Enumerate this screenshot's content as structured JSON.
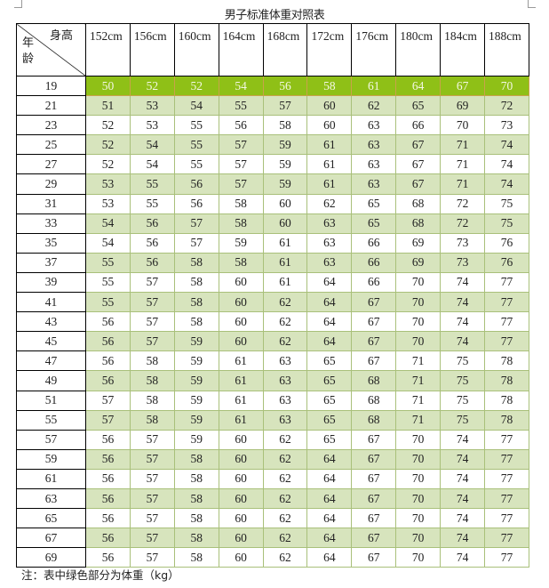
{
  "title": "男子标准体重对照表",
  "corner": {
    "height_label": "身高",
    "age_label": "年龄"
  },
  "heights": [
    "152cm",
    "156cm",
    "160cm",
    "164cm",
    "168cm",
    "172cm",
    "176cm",
    "180cm",
    "184cm",
    "188cm"
  ],
  "colors": {
    "highlight_row": "#8fc017",
    "alt_row": "#d7e4bd",
    "grid": "#a9c07a"
  },
  "rows": [
    {
      "age": "19",
      "w": [
        "50",
        "52",
        "52",
        "54",
        "56",
        "58",
        "61",
        "64",
        "67",
        "70"
      ]
    },
    {
      "age": "21",
      "w": [
        "51",
        "53",
        "54",
        "55",
        "57",
        "60",
        "62",
        "65",
        "69",
        "72"
      ]
    },
    {
      "age": "23",
      "w": [
        "52",
        "53",
        "55",
        "56",
        "58",
        "60",
        "63",
        "66",
        "70",
        "73"
      ]
    },
    {
      "age": "25",
      "w": [
        "52",
        "54",
        "55",
        "57",
        "59",
        "61",
        "63",
        "67",
        "71",
        "74"
      ]
    },
    {
      "age": "27",
      "w": [
        "52",
        "54",
        "55",
        "57",
        "59",
        "61",
        "63",
        "67",
        "71",
        "74"
      ]
    },
    {
      "age": "29",
      "w": [
        "53",
        "55",
        "56",
        "57",
        "59",
        "61",
        "63",
        "67",
        "71",
        "74"
      ]
    },
    {
      "age": "31",
      "w": [
        "53",
        "55",
        "56",
        "58",
        "60",
        "62",
        "65",
        "68",
        "72",
        "75"
      ]
    },
    {
      "age": "33",
      "w": [
        "54",
        "56",
        "57",
        "58",
        "60",
        "63",
        "65",
        "68",
        "72",
        "75"
      ]
    },
    {
      "age": "35",
      "w": [
        "54",
        "56",
        "57",
        "59",
        "61",
        "63",
        "66",
        "69",
        "73",
        "76"
      ]
    },
    {
      "age": "37",
      "w": [
        "55",
        "56",
        "58",
        "58",
        "61",
        "63",
        "66",
        "69",
        "73",
        "76"
      ]
    },
    {
      "age": "39",
      "w": [
        "55",
        "57",
        "58",
        "60",
        "61",
        "64",
        "66",
        "70",
        "74",
        "77"
      ]
    },
    {
      "age": "41",
      "w": [
        "55",
        "57",
        "58",
        "60",
        "62",
        "64",
        "67",
        "70",
        "74",
        "77"
      ]
    },
    {
      "age": "43",
      "w": [
        "56",
        "57",
        "58",
        "60",
        "62",
        "64",
        "67",
        "70",
        "74",
        "77"
      ]
    },
    {
      "age": "45",
      "w": [
        "56",
        "57",
        "59",
        "60",
        "62",
        "64",
        "67",
        "70",
        "74",
        "77"
      ]
    },
    {
      "age": "47",
      "w": [
        "56",
        "58",
        "59",
        "61",
        "63",
        "65",
        "67",
        "71",
        "75",
        "78"
      ]
    },
    {
      "age": "49",
      "w": [
        "56",
        "58",
        "59",
        "61",
        "63",
        "65",
        "68",
        "71",
        "75",
        "78"
      ]
    },
    {
      "age": "51",
      "w": [
        "57",
        "58",
        "59",
        "61",
        "63",
        "65",
        "68",
        "71",
        "75",
        "78"
      ]
    },
    {
      "age": "55",
      "w": [
        "57",
        "58",
        "59",
        "61",
        "63",
        "65",
        "68",
        "71",
        "75",
        "78"
      ]
    },
    {
      "age": "57",
      "w": [
        "56",
        "57",
        "59",
        "60",
        "62",
        "65",
        "67",
        "70",
        "74",
        "77"
      ]
    },
    {
      "age": "59",
      "w": [
        "56",
        "57",
        "58",
        "60",
        "62",
        "64",
        "67",
        "70",
        "74",
        "77"
      ]
    },
    {
      "age": "61",
      "w": [
        "56",
        "57",
        "58",
        "60",
        "62",
        "64",
        "67",
        "70",
        "74",
        "77"
      ]
    },
    {
      "age": "63",
      "w": [
        "56",
        "57",
        "58",
        "60",
        "62",
        "64",
        "67",
        "70",
        "74",
        "77"
      ]
    },
    {
      "age": "65",
      "w": [
        "56",
        "57",
        "58",
        "60",
        "62",
        "64",
        "67",
        "70",
        "74",
        "77"
      ]
    },
    {
      "age": "67",
      "w": [
        "56",
        "57",
        "58",
        "60",
        "62",
        "64",
        "67",
        "70",
        "74",
        "77"
      ]
    },
    {
      "age": "69",
      "w": [
        "56",
        "57",
        "58",
        "60",
        "62",
        "64",
        "67",
        "70",
        "74",
        "77"
      ]
    }
  ],
  "note": "注：表中绿色部分为体重（kg）"
}
